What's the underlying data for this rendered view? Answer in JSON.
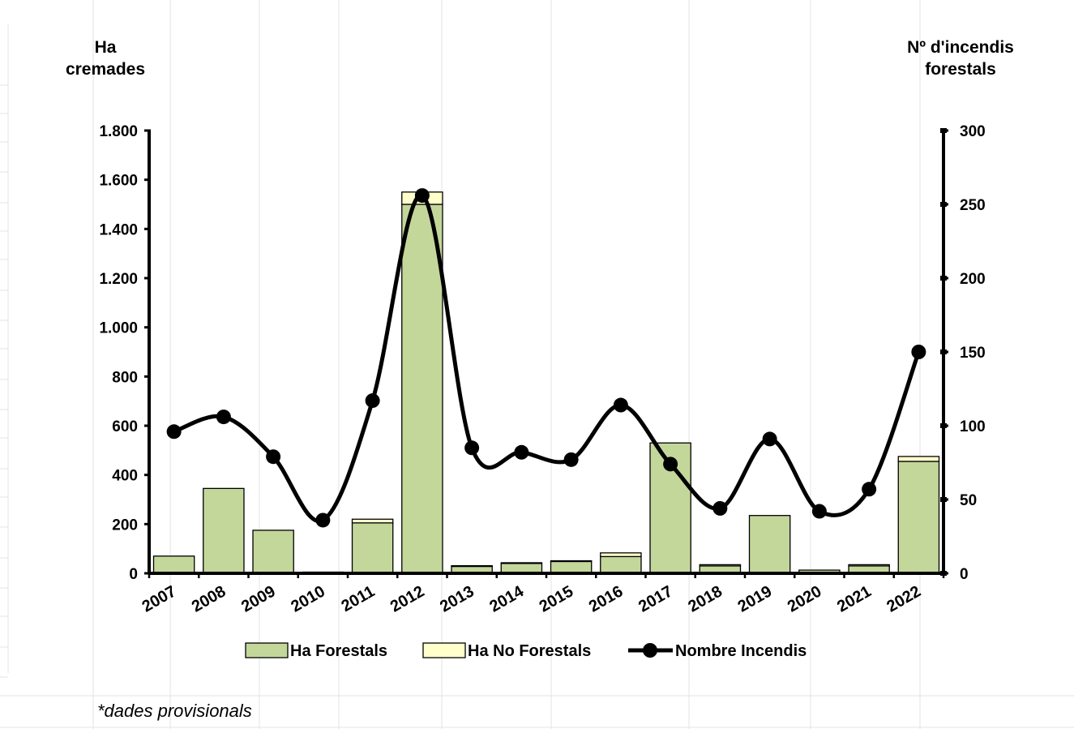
{
  "chart_data": {
    "type": "bar",
    "stacked": true,
    "categories": [
      "2007",
      "2008",
      "2009",
      "2010",
      "2011",
      "2012",
      "2013",
      "2014",
      "2015",
      "2016",
      "2017",
      "2018",
      "2019",
      "2020",
      "2021",
      "2022"
    ],
    "series": [
      {
        "name": "Ha Forestals",
        "type": "bar",
        "axis": "left",
        "color": "#c4d79b",
        "values": [
          70,
          345,
          175,
          5,
          205,
          1500,
          28,
          40,
          48,
          68,
          530,
          30,
          235,
          13,
          30,
          455
        ]
      },
      {
        "name": "Ha No Forestals",
        "type": "bar",
        "axis": "left",
        "color": "#ffffcc",
        "values": [
          0,
          0,
          0,
          0,
          15,
          50,
          3,
          3,
          3,
          15,
          0,
          5,
          0,
          0,
          5,
          20
        ]
      },
      {
        "name": "Nombre Incendis",
        "type": "line",
        "axis": "right",
        "color": "#000000",
        "values": [
          96,
          106,
          79,
          36,
          117,
          256,
          85,
          82,
          77,
          114,
          74,
          44,
          91,
          42,
          57,
          150
        ]
      }
    ],
    "y_left": {
      "label": "Ha cremades",
      "label_lines": [
        "Ha",
        "cremades"
      ],
      "ylim": [
        0,
        1800
      ],
      "ticks": [
        0,
        200,
        400,
        600,
        800,
        1000,
        1200,
        1400,
        1600,
        1800
      ],
      "tick_labels": [
        "0",
        "200",
        "400",
        "600",
        "800",
        "1.000",
        "1.200",
        "1.400",
        "1.600",
        "1.800"
      ]
    },
    "y_right": {
      "label": "Nº d'incendis forestals",
      "label_lines": [
        "Nº d'incendis",
        "forestals"
      ],
      "ylim": [
        0,
        300
      ],
      "ticks": [
        0,
        50,
        100,
        150,
        200,
        250,
        300
      ],
      "tick_labels": [
        "0",
        "50",
        "100",
        "150",
        "200",
        "250",
        "300"
      ]
    },
    "legend_position": "bottom",
    "grid": false
  },
  "footnote": "*dades provisionals"
}
